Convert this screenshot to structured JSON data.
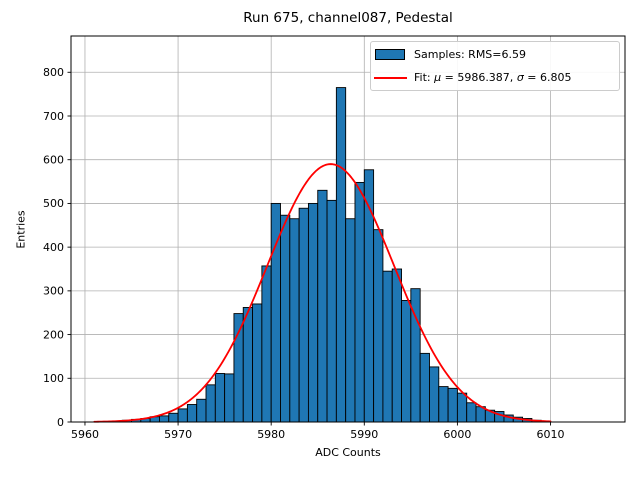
{
  "figure": {
    "title": "Run 675, channel087, Pedestal",
    "xlabel": "ADC Counts",
    "ylabel": "Entries"
  },
  "legend": {
    "samples": {
      "label": "Samples: RMS=6.59",
      "swatch_color": "#1f77b4"
    },
    "fit": {
      "prefix": "Fit: ",
      "mu_symbol": "μ",
      "mu_text": " = 5986.387, ",
      "sigma_symbol": "σ",
      "sigma_text": " = 6.805",
      "line_color": "#ff0000"
    }
  },
  "colors": {
    "bar_fill": "#1f77b4",
    "bar_edge": "#000000",
    "fit_line": "#ff0000",
    "grid": "#b0b0b0",
    "spine": "#000000",
    "background": "#ffffff"
  },
  "chart_data": {
    "type": "bar",
    "title": "Run 675, channel087, Pedestal",
    "xlabel": "ADC Counts",
    "ylabel": "Entries",
    "grid": true,
    "legend_position": "upper right",
    "x_ticks": [
      5960,
      5970,
      5980,
      5990,
      6000,
      6010
    ],
    "y_ticks": [
      0,
      100,
      200,
      300,
      400,
      500,
      600,
      700,
      800
    ],
    "xlim": [
      5958.5,
      6018.0
    ],
    "ylim": [
      0,
      883
    ],
    "bins": {
      "width": 1,
      "left_edges": [
        5963,
        5964,
        5965,
        5966,
        5967,
        5968,
        5969,
        5970,
        5971,
        5972,
        5973,
        5974,
        5975,
        5976,
        5977,
        5978,
        5979,
        5980,
        5981,
        5982,
        5983,
        5984,
        5985,
        5986,
        5987,
        5988,
        5989,
        5990,
        5991,
        5992,
        5993,
        5994,
        5995,
        5996,
        5997,
        5998,
        5999,
        6000,
        6001,
        6002,
        6003,
        6004,
        6005,
        6006,
        6007,
        6008
      ],
      "counts": [
        2,
        4,
        6,
        8,
        12,
        14,
        20,
        30,
        40,
        52,
        85,
        111,
        110,
        248,
        262,
        270,
        357,
        500,
        473,
        465,
        489,
        500,
        530,
        507,
        765,
        465,
        548,
        577,
        440,
        345,
        350,
        278,
        305,
        157,
        126,
        81,
        77,
        66,
        44,
        35,
        27,
        24,
        16,
        11,
        8,
        4
      ]
    },
    "fit_curve": {
      "shape": "gaussian",
      "mu": 5986.387,
      "sigma": 6.805,
      "amplitude": 590,
      "x_start": 5961,
      "x_end": 6010
    },
    "stats": {
      "samples_rms": 6.59,
      "fit_mu": 5986.387,
      "fit_sigma": 6.805
    }
  }
}
